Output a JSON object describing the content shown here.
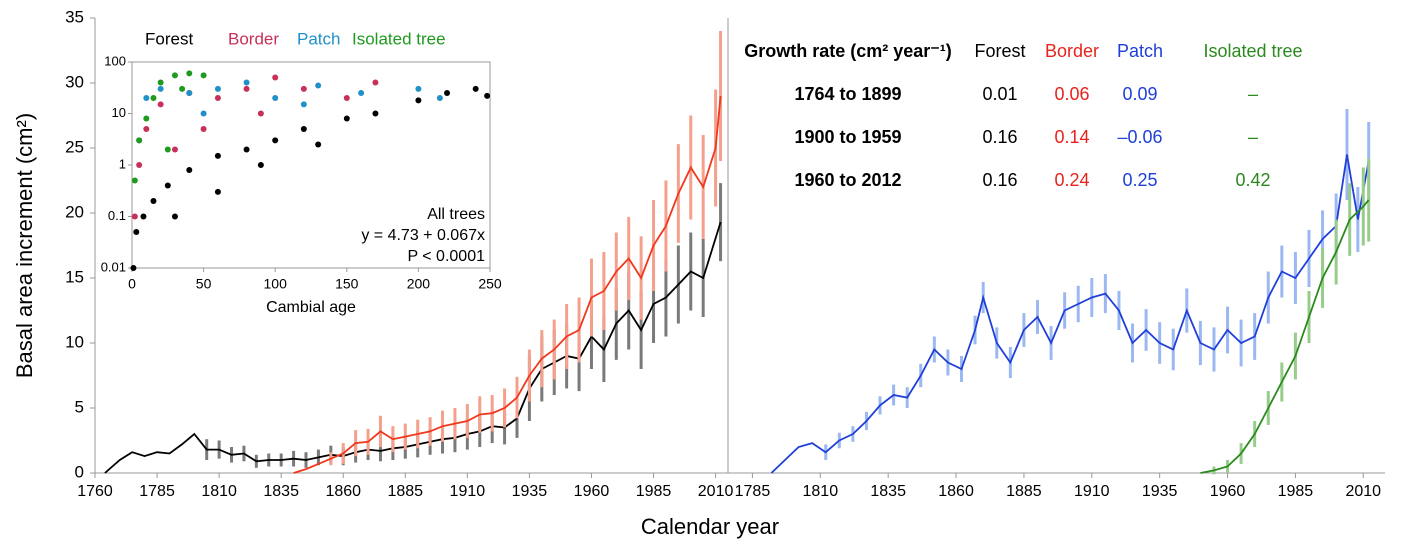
{
  "chart_data": [
    {
      "type": "line",
      "ylabel": "Basal area increment (cm²)",
      "xlabel": "Calendar year",
      "ylim": [
        0,
        35
      ],
      "yticks": [
        0,
        5,
        10,
        15,
        20,
        25,
        30,
        35
      ],
      "panels": [
        {
          "xlim": [
            1760,
            2015
          ],
          "xticks": [
            1760,
            1785,
            1810,
            1835,
            1860,
            1885,
            1910,
            1935,
            1960,
            1985,
            2010
          ]
        },
        {
          "xlim": [
            1776,
            2018
          ],
          "xticks": [
            1785,
            1810,
            1835,
            1860,
            1885,
            1910,
            1935,
            1960,
            1985,
            2010
          ]
        }
      ],
      "series": [
        {
          "name": "Forest",
          "panel": 0,
          "color": "#000000",
          "error_color": "#7a7a7a",
          "x": [
            1764,
            1770,
            1775,
            1780,
            1785,
            1790,
            1795,
            1800,
            1805,
            1810,
            1815,
            1820,
            1825,
            1830,
            1835,
            1840,
            1845,
            1850,
            1855,
            1860,
            1865,
            1870,
            1875,
            1880,
            1885,
            1890,
            1895,
            1900,
            1905,
            1910,
            1915,
            1920,
            1925,
            1930,
            1935,
            1940,
            1945,
            1950,
            1955,
            1960,
            1965,
            1970,
            1975,
            1980,
            1985,
            1990,
            1995,
            2000,
            2005,
            2012
          ],
          "values": [
            0,
            1.0,
            1.6,
            1.3,
            1.6,
            1.5,
            2.2,
            3.0,
            1.8,
            1.8,
            1.4,
            1.5,
            0.9,
            1.0,
            1.0,
            1.1,
            1.0,
            1.2,
            1.4,
            1.3,
            1.6,
            1.8,
            1.7,
            1.9,
            2.0,
            2.2,
            2.4,
            2.6,
            2.7,
            3.0,
            3.2,
            3.6,
            3.5,
            4.2,
            6.5,
            8.0,
            8.5,
            9.0,
            8.8,
            10.5,
            9.5,
            11.5,
            12.5,
            11.0,
            13.0,
            13.5,
            14.5,
            15.5,
            15.0,
            19.3
          ],
          "errors": [
            null,
            null,
            null,
            null,
            null,
            null,
            null,
            null,
            0.8,
            0.7,
            0.6,
            0.6,
            0.5,
            0.5,
            0.5,
            0.6,
            0.6,
            0.6,
            0.7,
            0.7,
            0.8,
            0.8,
            0.8,
            0.9,
            0.9,
            1.0,
            1.0,
            1.1,
            1.1,
            1.2,
            1.2,
            1.3,
            1.3,
            1.5,
            2.5,
            2.5,
            2.5,
            2.5,
            2.5,
            2.5,
            2.5,
            2.8,
            3.0,
            3.0,
            3.0,
            3.0,
            3.0,
            3.0,
            3.0,
            3.0
          ]
        },
        {
          "name": "Border",
          "panel": 0,
          "color": "#f0381e",
          "error_color": "#f5a08c",
          "x": [
            1840,
            1845,
            1850,
            1855,
            1860,
            1865,
            1870,
            1875,
            1880,
            1885,
            1890,
            1895,
            1900,
            1905,
            1910,
            1915,
            1920,
            1925,
            1930,
            1935,
            1940,
            1945,
            1950,
            1955,
            1960,
            1965,
            1970,
            1975,
            1980,
            1985,
            1990,
            1995,
            2000,
            2005,
            2010,
            2012
          ],
          "values": [
            0,
            0.3,
            0.7,
            1.1,
            1.5,
            2.3,
            2.4,
            3.2,
            2.6,
            2.8,
            3.0,
            3.2,
            3.6,
            3.8,
            4.0,
            4.5,
            4.6,
            5.0,
            5.8,
            7.5,
            8.8,
            9.5,
            10.5,
            11.0,
            13.5,
            14.0,
            15.5,
            16.5,
            15.0,
            17.5,
            19.0,
            21.5,
            23.5,
            22.0,
            25.0,
            29.0
          ],
          "errors": [
            null,
            null,
            null,
            0.5,
            0.8,
            1.0,
            1.0,
            1.2,
            1.0,
            1.0,
            1.1,
            1.1,
            1.2,
            1.2,
            1.3,
            1.4,
            1.4,
            1.5,
            1.6,
            2.0,
            2.2,
            2.3,
            2.5,
            2.5,
            3.0,
            3.0,
            3.0,
            3.2,
            3.2,
            3.5,
            3.5,
            3.8,
            4.0,
            4.0,
            4.5,
            5.0
          ]
        },
        {
          "name": "Patch",
          "panel": 1,
          "color": "#1f3fd8",
          "error_color": "#9bb8f2",
          "x": [
            1792,
            1797,
            1802,
            1807,
            1812,
            1817,
            1822,
            1827,
            1832,
            1837,
            1842,
            1847,
            1852,
            1857,
            1862,
            1867,
            1870,
            1875,
            1880,
            1885,
            1890,
            1895,
            1900,
            1905,
            1910,
            1915,
            1920,
            1925,
            1930,
            1935,
            1940,
            1945,
            1950,
            1955,
            1960,
            1965,
            1970,
            1975,
            1980,
            1985,
            1990,
            1995,
            2000,
            2004,
            2008,
            2012
          ],
          "values": [
            0,
            1.0,
            2.0,
            2.3,
            1.6,
            2.5,
            3.0,
            4.0,
            5.2,
            6.0,
            5.8,
            7.5,
            9.5,
            8.5,
            8.0,
            11.0,
            13.5,
            10.0,
            8.5,
            11.0,
            12.0,
            10.0,
            12.5,
            13.0,
            13.5,
            13.8,
            12.5,
            10.0,
            11.0,
            10.0,
            9.5,
            12.5,
            10.0,
            9.5,
            11.0,
            10.0,
            10.5,
            13.5,
            15.5,
            15.0,
            16.5,
            18.0,
            19.0,
            24.5,
            19.5,
            24.0
          ],
          "errors": [
            null,
            null,
            null,
            null,
            0.6,
            0.6,
            0.6,
            0.7,
            0.7,
            0.8,
            0.8,
            0.9,
            1.0,
            1.0,
            1.0,
            1.1,
            1.2,
            1.2,
            1.2,
            1.3,
            1.3,
            1.3,
            1.4,
            1.4,
            1.5,
            1.5,
            1.5,
            1.5,
            1.6,
            1.6,
            1.6,
            1.7,
            1.7,
            1.7,
            1.8,
            1.8,
            1.8,
            2.0,
            2.0,
            2.0,
            2.2,
            2.2,
            2.5,
            3.5,
            2.5,
            3.0
          ]
        },
        {
          "name": "Isolated tree",
          "panel": 1,
          "color": "#2a8a1e",
          "error_color": "#98cc8a",
          "x": [
            1950,
            1955,
            1960,
            1965,
            1970,
            1975,
            1980,
            1985,
            1990,
            1995,
            2000,
            2005,
            2010,
            2012
          ],
          "values": [
            0,
            0.2,
            0.5,
            1.5,
            3.0,
            5.0,
            7.0,
            9.0,
            12.0,
            15.0,
            17.0,
            19.5,
            20.5,
            21.0
          ],
          "errors": [
            null,
            0.3,
            0.5,
            0.8,
            1.0,
            1.3,
            1.5,
            1.8,
            2.0,
            2.3,
            2.5,
            2.8,
            3.0,
            3.2
          ]
        }
      ],
      "table": {
        "header": [
          "Growth rate (cm² year⁻¹)",
          "Forest",
          "Border",
          "Patch",
          "Isolated tree"
        ],
        "header_colors": [
          "#000000",
          "#000000",
          "#e8231c",
          "#1f3fd8",
          "#2a8a1e"
        ],
        "rows": [
          [
            "1764 to 1899",
            "0.01",
            "0.06",
            "0.09",
            "–"
          ],
          [
            "1900 to 1959",
            "0.16",
            "0.14",
            "–0.06",
            "–"
          ],
          [
            "1960 to 2012",
            "0.16",
            "0.24",
            "0.25",
            "0.42"
          ]
        ]
      }
    },
    {
      "type": "scatter",
      "log_y": true,
      "xlabel": "Cambial age",
      "xlim": [
        0,
        250
      ],
      "xticks": [
        0,
        50,
        100,
        150,
        200,
        250
      ],
      "ylim": [
        0.01,
        100
      ],
      "yticks": [
        0.01,
        0.1,
        1,
        10,
        100
      ],
      "annotations": [
        "All trees",
        "y = 4.73 + 0.067x",
        "P < 0.0001"
      ],
      "series": [
        {
          "name": "Forest",
          "color": "#000000",
          "x": [
            1,
            3,
            8,
            15,
            25,
            40,
            60,
            80,
            100,
            120,
            150,
            170,
            200,
            220,
            240,
            248,
            30,
            60,
            90,
            130
          ],
          "values": [
            0.01,
            0.05,
            0.1,
            0.2,
            0.4,
            0.8,
            1.5,
            2,
            3,
            5,
            8,
            10,
            18,
            25,
            30,
            22,
            0.1,
            0.3,
            1,
            2.5
          ]
        },
        {
          "name": "Border",
          "color": "#c8305a",
          "x": [
            2,
            5,
            10,
            20,
            40,
            60,
            80,
            100,
            120,
            150,
            170,
            30,
            50,
            90
          ],
          "values": [
            0.1,
            1,
            5,
            15,
            25,
            20,
            30,
            50,
            30,
            20,
            40,
            2,
            5,
            10
          ]
        },
        {
          "name": "Patch",
          "color": "#2090c8",
          "x": [
            5,
            10,
            20,
            40,
            60,
            80,
            100,
            130,
            160,
            200,
            215,
            50,
            120
          ],
          "values": [
            3,
            20,
            30,
            25,
            30,
            40,
            20,
            35,
            25,
            30,
            20,
            10,
            15
          ]
        },
        {
          "name": "Isolated tree",
          "color": "#1f9a1f",
          "x": [
            2,
            5,
            10,
            15,
            20,
            30,
            40,
            50,
            25,
            35
          ],
          "values": [
            0.5,
            3,
            8,
            20,
            40,
            55,
            60,
            55,
            2,
            30
          ]
        }
      ]
    }
  ]
}
